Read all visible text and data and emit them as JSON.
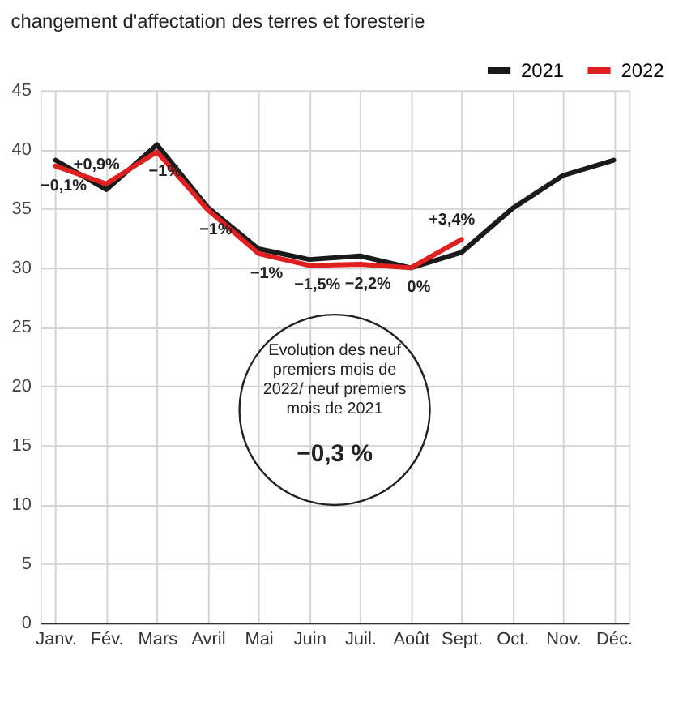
{
  "chart_data": {
    "type": "line",
    "subtitle": "changement d'affectation des terres et foresterie",
    "categories": [
      "Janv.",
      "Fév.",
      "Mars",
      "Avril",
      "Mai",
      "Juin",
      "Juil.",
      "Août",
      "Sept.",
      "Oct.",
      "Nov.",
      "Déc."
    ],
    "series": [
      {
        "name": "2021",
        "color": "#1a1a1a",
        "values": [
          39.1,
          36.6,
          40.4,
          35.1,
          31.6,
          30.7,
          31.0,
          30.0,
          31.3,
          35.0,
          37.8,
          39.1
        ]
      },
      {
        "name": "2022",
        "color": "#e02020",
        "values": [
          38.6,
          37.1,
          39.8,
          34.9,
          31.2,
          30.2,
          30.3,
          30.0,
          32.4,
          null,
          null,
          null
        ]
      }
    ],
    "ylim": [
      0,
      45
    ],
    "yticks": [
      0,
      5,
      10,
      15,
      20,
      25,
      30,
      35,
      40,
      45
    ],
    "grid": true,
    "legend": "top right",
    "marker": "none",
    "line_style": "solid",
    "annotations": [
      {
        "text": "−0,1%",
        "x": "Janv.",
        "y": 38.6
      },
      {
        "text": "+0,9%",
        "x": "Fév.",
        "y": 37.1
      },
      {
        "text": "−1%",
        "x": "Mars",
        "y": 39.8
      },
      {
        "text": "−1%",
        "x": "Avril",
        "y": 34.9
      },
      {
        "text": "−1%",
        "x": "Mai",
        "y": 31.2
      },
      {
        "text": "−1,5%",
        "x": "Juin",
        "y": 30.2
      },
      {
        "text": "−2,2%",
        "x": "Juil.",
        "y": 30.3
      },
      {
        "text": "0%",
        "x": "Août",
        "y": 30.0
      },
      {
        "text": "+3,4%",
        "x": "Sept.",
        "y": 32.4
      },
      "Evolution des neuf premiers mois de 2022/ neuf premiers mois de 2021",
      "−0,3 %"
    ]
  }
}
